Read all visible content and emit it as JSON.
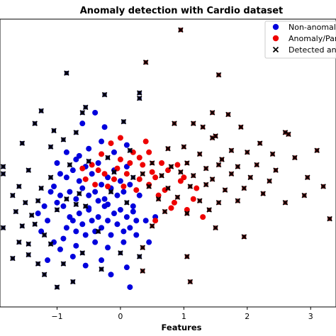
{
  "chart_data": {
    "type": "scatter",
    "title": "Anomaly detection with Cardio dataset",
    "xlabel": "Features",
    "ylabel": "",
    "xlim": [
      -1.9,
      3.4
    ],
    "ylim": [
      -3.4,
      4.6
    ],
    "xticks": [
      -1,
      0,
      1,
      2,
      3
    ],
    "xtick_labels": [
      "−1",
      "0",
      "1",
      "2",
      "3"
    ],
    "grid": false,
    "legend_position": "top-right",
    "colors": {
      "normal": "#0000dd",
      "anomaly": "#ee0000",
      "detected_marker": "#000000",
      "detected_fill_inner": "#6e0f0f",
      "detected_fill_outer": "#0b0b4a"
    },
    "series": [
      {
        "name": "Non-anomal",
        "marker": "circle",
        "points": [
          [
            -0.9,
            -1.5
          ],
          [
            -0.85,
            -1.2
          ],
          [
            -0.8,
            -0.9
          ],
          [
            -0.75,
            -1.0
          ],
          [
            -0.7,
            -1.3
          ],
          [
            -0.65,
            -0.8
          ],
          [
            -0.6,
            -1.1
          ],
          [
            -0.55,
            -1.4
          ],
          [
            -0.5,
            -0.7
          ],
          [
            -0.45,
            -1.0
          ],
          [
            -0.4,
            -1.3
          ],
          [
            -0.35,
            -0.9
          ],
          [
            -0.3,
            -1.2
          ],
          [
            -0.25,
            -0.6
          ],
          [
            -0.2,
            -1.0
          ],
          [
            -0.15,
            -1.4
          ],
          [
            -0.1,
            -0.8
          ],
          [
            -0.05,
            -1.1
          ],
          [
            0.0,
            -0.7
          ],
          [
            0.05,
            -1.3
          ],
          [
            0.1,
            -0.9
          ],
          [
            0.15,
            -1.2
          ],
          [
            0.2,
            -0.6
          ],
          [
            0.25,
            -1.0
          ],
          [
            -1.0,
            -0.5
          ],
          [
            -0.95,
            -0.3
          ],
          [
            -0.9,
            -0.6
          ],
          [
            -0.85,
            0.2
          ],
          [
            -0.8,
            -0.2
          ],
          [
            -0.75,
            0.4
          ],
          [
            -0.7,
            -0.4
          ],
          [
            -0.65,
            0.1
          ],
          [
            -0.6,
            -0.1
          ],
          [
            -0.55,
            0.5
          ],
          [
            -0.5,
            -0.3
          ],
          [
            -0.45,
            0.3
          ],
          [
            -0.4,
            -0.2
          ],
          [
            -0.35,
            0.6
          ],
          [
            -0.3,
            0.0
          ],
          [
            -0.25,
            -0.4
          ],
          [
            -0.2,
            0.2
          ],
          [
            -0.15,
            -0.1
          ],
          [
            -0.1,
            0.4
          ],
          [
            -0.05,
            -0.3
          ],
          [
            0.0,
            0.1
          ],
          [
            0.05,
            -0.2
          ],
          [
            0.1,
            0.5
          ],
          [
            0.15,
            0.0
          ],
          [
            -1.15,
            -1.0
          ],
          [
            -1.2,
            -0.6
          ],
          [
            -1.25,
            -1.3
          ],
          [
            -1.1,
            -0.2
          ],
          [
            -1.3,
            -0.8
          ],
          [
            -1.05,
            -1.6
          ],
          [
            -0.95,
            -1.8
          ],
          [
            -0.7,
            -1.7
          ],
          [
            -0.4,
            -1.6
          ],
          [
            -0.2,
            -1.75
          ],
          [
            0.05,
            -1.6
          ],
          [
            0.25,
            -1.4
          ],
          [
            0.4,
            -1.0
          ],
          [
            0.55,
            -0.9
          ],
          [
            -1.0,
            0.6
          ],
          [
            -0.85,
            0.9
          ],
          [
            -0.65,
            0.8
          ],
          [
            -0.5,
            1.0
          ],
          [
            -0.3,
            1.2
          ],
          [
            -0.1,
            0.9
          ],
          [
            0.1,
            1.1
          ],
          [
            -0.6,
            1.7
          ],
          [
            -0.4,
            2.0
          ],
          [
            -0.25,
            1.6
          ],
          [
            -0.7,
            0.7
          ],
          [
            -0.95,
            0.3
          ],
          [
            -1.05,
            -0.05
          ],
          [
            -0.5,
            -0.65
          ],
          [
            -0.35,
            -0.45
          ],
          [
            -0.2,
            -0.55
          ],
          [
            0.3,
            -0.3
          ],
          [
            0.2,
            -0.75
          ],
          [
            -0.75,
            -2.0
          ],
          [
            -0.3,
            -2.1
          ],
          [
            0.1,
            -2.3
          ],
          [
            -1.15,
            -2.1
          ],
          [
            -0.55,
            -2.25
          ],
          [
            0.15,
            -2.85
          ],
          [
            -0.15,
            -2.5
          ],
          [
            0.45,
            -1.6
          ]
        ]
      },
      {
        "name": "Anomaly/Par",
        "marker": "circle",
        "points": [
          [
            -0.45,
            0.55
          ],
          [
            -0.3,
            0.85
          ],
          [
            -0.15,
            1.15
          ],
          [
            0.0,
            0.7
          ],
          [
            0.1,
            0.3
          ],
          [
            0.2,
            0.9
          ],
          [
            0.3,
            0.15
          ],
          [
            0.35,
            0.55
          ],
          [
            0.45,
            0.0
          ],
          [
            0.5,
            0.35
          ],
          [
            -0.55,
            0.15
          ],
          [
            -0.4,
            0.0
          ],
          [
            -0.25,
            0.3
          ],
          [
            -0.1,
            0.15
          ],
          [
            0.05,
            -0.05
          ],
          [
            0.15,
            0.6
          ],
          [
            0.4,
            1.2
          ],
          [
            -0.2,
            -0.05
          ],
          [
            0.55,
            0.2
          ],
          [
            0.6,
            -0.3
          ],
          [
            0.7,
            -0.15
          ],
          [
            0.85,
            -0.5
          ],
          [
            0.9,
            0.55
          ],
          [
            1.0,
            0.2
          ],
          [
            1.15,
            -0.4
          ],
          [
            1.3,
            -0.9
          ],
          [
            1.05,
            -0.7
          ],
          [
            0.75,
            0.4
          ],
          [
            0.65,
            0.6
          ],
          [
            -0.05,
            0.45
          ],
          [
            0.25,
            -0.15
          ],
          [
            -0.35,
            0.4
          ],
          [
            0.8,
            -0.65
          ],
          [
            0.55,
            -1.0
          ],
          [
            -0.6,
            0.45
          ],
          [
            0.3,
            0.75
          ],
          [
            0.0,
            1.3
          ],
          [
            0.45,
            0.9
          ],
          [
            1.2,
            -0.1
          ],
          [
            0.95,
            0.1
          ]
        ]
      },
      {
        "name": "Detected an",
        "marker": "x",
        "points": [
          [
            0.95,
            4.3
          ],
          [
            0.4,
            3.4
          ],
          [
            1.55,
            3.05
          ],
          [
            0.3,
            2.55
          ],
          [
            0.3,
            2.4
          ],
          [
            1.45,
            2.0
          ],
          [
            1.7,
            1.95
          ],
          [
            1.15,
            1.7
          ],
          [
            1.3,
            1.6
          ],
          [
            1.9,
            1.6
          ],
          [
            0.85,
            1.7
          ],
          [
            2.6,
            1.45
          ],
          [
            2.65,
            1.4
          ],
          [
            1.45,
            1.3
          ],
          [
            1.5,
            1.35
          ],
          [
            2.2,
            1.15
          ],
          [
            0.75,
            1.0
          ],
          [
            1.0,
            1.05
          ],
          [
            1.25,
            0.85
          ],
          [
            1.6,
            0.7
          ],
          [
            1.75,
            0.95
          ],
          [
            2.0,
            0.9
          ],
          [
            2.4,
            0.85
          ],
          [
            3.1,
            0.95
          ],
          [
            2.75,
            0.75
          ],
          [
            0.5,
            0.6
          ],
          [
            0.8,
            0.5
          ],
          [
            1.05,
            0.6
          ],
          [
            1.35,
            0.45
          ],
          [
            1.55,
            0.55
          ],
          [
            1.85,
            0.5
          ],
          [
            2.15,
            0.55
          ],
          [
            2.45,
            0.4
          ],
          [
            0.35,
            0.3
          ],
          [
            0.65,
            0.25
          ],
          [
            0.95,
            0.35
          ],
          [
            1.15,
            0.25
          ],
          [
            1.45,
            0.15
          ],
          [
            1.75,
            0.3
          ],
          [
            2.05,
            0.2
          ],
          [
            2.35,
            0.1
          ],
          [
            2.95,
            0.2
          ],
          [
            3.2,
            -0.05
          ],
          [
            0.45,
            -0.05
          ],
          [
            0.75,
            -0.1
          ],
          [
            1.1,
            -0.05
          ],
          [
            1.35,
            0.0
          ],
          [
            1.65,
            -0.15
          ],
          [
            1.95,
            -0.1
          ],
          [
            2.25,
            -0.25
          ],
          [
            2.9,
            -0.3
          ],
          [
            0.6,
            -0.4
          ],
          [
            0.9,
            -0.35
          ],
          [
            1.25,
            -0.45
          ],
          [
            1.55,
            -0.5
          ],
          [
            1.85,
            -0.45
          ],
          [
            2.6,
            -0.5
          ],
          [
            0.7,
            -0.75
          ],
          [
            1.05,
            -0.8
          ],
          [
            1.4,
            -0.7
          ],
          [
            3.3,
            -0.95
          ],
          [
            0.5,
            -1.15
          ],
          [
            1.5,
            -1.2
          ],
          [
            1.95,
            -1.45
          ],
          [
            0.35,
            -1.75
          ],
          [
            1.05,
            -2.0
          ],
          [
            1.1,
            -2.7
          ],
          [
            -1.25,
            2.05
          ],
          [
            -1.35,
            1.7
          ],
          [
            -1.05,
            1.5
          ],
          [
            -0.7,
            1.45
          ],
          [
            -1.55,
            1.15
          ],
          [
            -1.1,
            1.05
          ],
          [
            -0.9,
            1.25
          ],
          [
            -0.25,
            2.5
          ],
          [
            -0.55,
            2.15
          ],
          [
            -0.6,
            2.0
          ],
          [
            0.05,
            1.75
          ],
          [
            -1.85,
            0.5
          ],
          [
            -1.85,
            0.3
          ],
          [
            -1.7,
            -0.3
          ],
          [
            -1.5,
            -0.5
          ],
          [
            -1.4,
            -0.85
          ],
          [
            -1.55,
            -1.15
          ],
          [
            -1.6,
            -1.6
          ],
          [
            -1.45,
            -1.95
          ],
          [
            -1.3,
            -2.2
          ],
          [
            -1.7,
            -2.05
          ],
          [
            -1.85,
            -1.2
          ],
          [
            -1.65,
            -0.75
          ],
          [
            -1.25,
            -0.1
          ],
          [
            -0.85,
            3.1
          ],
          [
            -1.1,
            -1.65
          ],
          [
            -1.35,
            -1.1
          ],
          [
            -1.0,
            -2.85
          ],
          [
            -0.75,
            -2.7
          ],
          [
            -1.2,
            -2.5
          ],
          [
            -0.3,
            -2.35
          ],
          [
            0.35,
            -2.4
          ],
          [
            -1.45,
            0.4
          ],
          [
            -1.1,
            0.2
          ],
          [
            -0.8,
            0.55
          ],
          [
            -0.5,
            0.65
          ],
          [
            -0.2,
            0.75
          ],
          [
            0.15,
            0.95
          ],
          [
            -1.6,
            -0.05
          ],
          [
            -1.3,
            -0.45
          ],
          [
            -1.0,
            -0.7
          ],
          [
            -0.65,
            -0.25
          ],
          [
            -0.1,
            0.35
          ],
          [
            0.2,
            0.2
          ],
          [
            -0.85,
            -0.4
          ],
          [
            -0.55,
            -0.6
          ],
          [
            -0.15,
            -0.2
          ],
          [
            0.1,
            -0.5
          ],
          [
            -1.2,
            -1.4
          ],
          [
            -0.6,
            -1.9
          ],
          [
            0.0,
            -1.9
          ],
          [
            -0.9,
            -2.2
          ],
          [
            0.3,
            -2.0
          ],
          [
            -0.35,
            -1.3
          ],
          [
            -0.7,
            -0.55
          ],
          [
            -1.45,
            -1.65
          ]
        ]
      }
    ],
    "legend": [
      {
        "label": "Non-anomal",
        "symbol": "circle",
        "color": "#0000dd"
      },
      {
        "label": "Anomaly/Par",
        "symbol": "circle",
        "color": "#ee0000"
      },
      {
        "label": "Detected an",
        "symbol": "x",
        "color": "#000000"
      }
    ]
  }
}
